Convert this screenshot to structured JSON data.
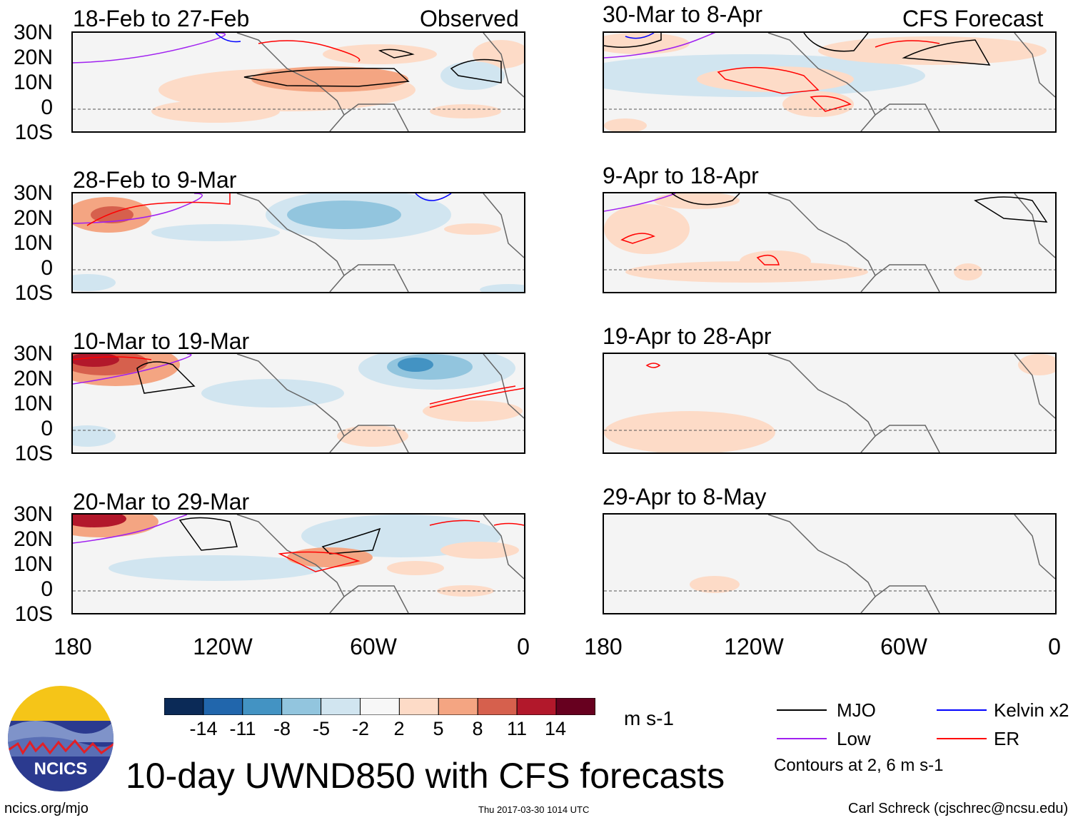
{
  "panels": [
    {
      "title": "18-Feb to 27-Feb",
      "tag": "Observed"
    },
    {
      "title": "28-Feb to 9-Mar",
      "tag": ""
    },
    {
      "title": "10-Mar to 19-Mar",
      "tag": ""
    },
    {
      "title": "20-Mar to 29-Mar",
      "tag": ""
    },
    {
      "title": "30-Mar to 8-Apr",
      "tag": "CFS Forecast"
    },
    {
      "title": "9-Apr to 18-Apr",
      "tag": ""
    },
    {
      "title": "19-Apr to 28-Apr",
      "tag": ""
    },
    {
      "title": "29-Apr to 8-May",
      "tag": ""
    }
  ],
  "lat_labels": [
    "30N",
    "20N",
    "10N",
    "0",
    "10S"
  ],
  "lon_labels": [
    "180",
    "120W",
    "60W",
    "0"
  ],
  "colorbar": {
    "labels": [
      "-14",
      "-11",
      "-8",
      "-5",
      "-2",
      "2",
      "5",
      "8",
      "11",
      "14"
    ],
    "colors": [
      "#0b2a57",
      "#2166ac",
      "#4393c3",
      "#92c5de",
      "#d1e5f0",
      "#f7f7f7",
      "#fddbc7",
      "#f4a582",
      "#d6604d",
      "#b2182b",
      "#67001f"
    ],
    "units": "m s-1"
  },
  "legend": {
    "items": [
      {
        "label": "MJO",
        "color": "#000000"
      },
      {
        "label": "Low",
        "color": "#a020f0"
      },
      {
        "label": "Kelvin x2",
        "color": "#0000ff"
      },
      {
        "label": "ER",
        "color": "#ff0000"
      }
    ],
    "note": "Contours at 2, 6 m s-1"
  },
  "logo_text": "NCICS",
  "main_title": "10-day UWND850 with CFS forecasts",
  "footer": {
    "left": "ncics.org/mjo",
    "center": "Thu 2017-03-30 1014 UTC",
    "right": "Carl Schreck (cjschrec@ncsu.edu)"
  }
}
